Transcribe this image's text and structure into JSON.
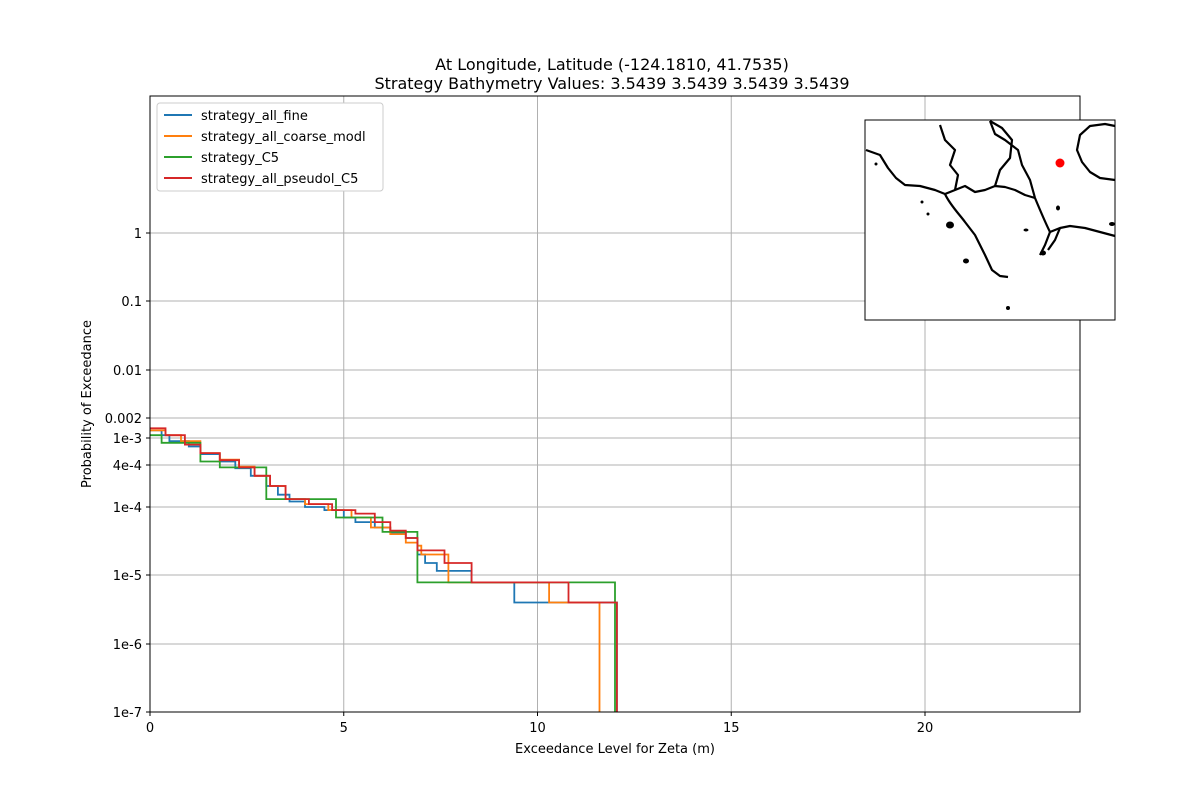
{
  "chart_data": {
    "type": "line",
    "title": "At Longitude, Latitude (-124.1810,  41.7535)",
    "subtitle": "Strategy Bathymetry Values:    3.5439    3.5439    3.5439    3.5439",
    "xlabel": "Exceedance Level for Zeta (m)",
    "ylabel": "Probability of Exceedance",
    "xlim": [
      0,
      24
    ],
    "ylim_transformed": "mixed log-like scale",
    "grid": true,
    "legend_position": "upper-left",
    "x_ticks": [
      {
        "value": 0,
        "label": "0"
      },
      {
        "value": 5,
        "label": "5"
      },
      {
        "value": 10,
        "label": "10"
      },
      {
        "value": 15,
        "label": "15"
      },
      {
        "value": 20,
        "label": "20"
      }
    ],
    "y_ticks": [
      {
        "value": 1,
        "label": "1"
      },
      {
        "value": 0.1,
        "label": "0.1"
      },
      {
        "value": 0.01,
        "label": "0.01"
      },
      {
        "value": 0.002,
        "label": "0.002"
      },
      {
        "value": 0.001,
        "label": "1e-3"
      },
      {
        "value": 0.0004,
        "label": "4e-4"
      },
      {
        "value": 0.0001,
        "label": "1e-4"
      },
      {
        "value": 1e-05,
        "label": "1e-5"
      },
      {
        "value": 1e-06,
        "label": "1e-6"
      },
      {
        "value": 1e-07,
        "label": "1e-7"
      }
    ],
    "series": [
      {
        "name": "strategy_all_fine",
        "color": "#1f77b4",
        "x": [
          0,
          0.3,
          0.5,
          1.0,
          1.3,
          1.8,
          2.2,
          2.6,
          3.0,
          3.3,
          3.6,
          4.0,
          4.5,
          5.0,
          5.3,
          5.8,
          6.2,
          6.6,
          6.9,
          7.1,
          7.4,
          8.3,
          9.4,
          11.6,
          12.05
        ],
        "y": [
          0.0013,
          0.0011,
          0.0009,
          0.00075,
          0.00058,
          0.00045,
          0.00036,
          0.00028,
          0.0002,
          0.00015,
          0.00012,
          0.0001,
          9e-05,
          7e-05,
          6e-05,
          5e-05,
          4.2e-05,
          3.5e-05,
          2e-05,
          1.5e-05,
          1.15e-05,
          7.8e-06,
          4e-06,
          4e-06,
          1e-07
        ]
      },
      {
        "name": "strategy_all_coarse_modl",
        "color": "#ff7f0e",
        "x": [
          0,
          0.4,
          0.8,
          1.3,
          1.8,
          2.3,
          2.7,
          3.1,
          3.5,
          4.0,
          4.6,
          5.2,
          5.7,
          6.2,
          6.6,
          6.9,
          7.0,
          7.7,
          10.3,
          11.6
        ],
        "y": [
          0.0013,
          0.0011,
          0.0009,
          0.0006,
          0.00048,
          0.00038,
          0.00028,
          0.0002,
          0.00013,
          0.00011,
          9e-05,
          7e-05,
          5e-05,
          4e-05,
          3e-05,
          2.7e-05,
          2e-05,
          7.8e-06,
          4e-06,
          1e-07
        ]
      },
      {
        "name": "strategy_C5",
        "color": "#2ca02c",
        "x": [
          0,
          0.3,
          1.3,
          1.8,
          3.0,
          3.0,
          4.8,
          4.8,
          6.0,
          6.9,
          12.0
        ],
        "y": [
          0.0011,
          0.00085,
          0.00045,
          0.00037,
          0.00037,
          0.00013,
          0.00013,
          7e-05,
          4.3e-05,
          7.8e-06,
          1e-07
        ]
      },
      {
        "name": "strategy_all_pseudol_C5",
        "color": "#d62728",
        "x": [
          0,
          0.4,
          0.9,
          1.3,
          1.8,
          2.3,
          2.7,
          3.1,
          3.5,
          4.1,
          4.7,
          5.3,
          5.8,
          6.2,
          6.6,
          6.9,
          7.6,
          8.3,
          8.4,
          10.8,
          12.05
        ],
        "y": [
          0.0014,
          0.0011,
          0.0008,
          0.0006,
          0.00047,
          0.00037,
          0.00028,
          0.0002,
          0.00013,
          0.00011,
          9e-05,
          8e-05,
          6e-05,
          4.5e-05,
          3.5e-05,
          2.3e-05,
          1.5e-05,
          7.8e-06,
          7.8e-06,
          4e-06,
          1e-07
        ]
      }
    ],
    "inset_map": {
      "marker_color": "#ff0000"
    }
  }
}
